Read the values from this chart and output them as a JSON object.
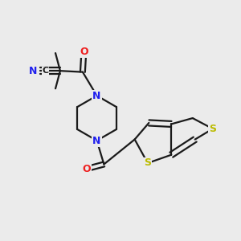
{
  "bg_color": "#ebebeb",
  "bond_color": "#1a1a1a",
  "atom_colors": {
    "N": "#2020ee",
    "O": "#ee2020",
    "S": "#bbbb00",
    "C": "#1a1a1a"
  },
  "lw": 1.6,
  "dbo": 0.012
}
